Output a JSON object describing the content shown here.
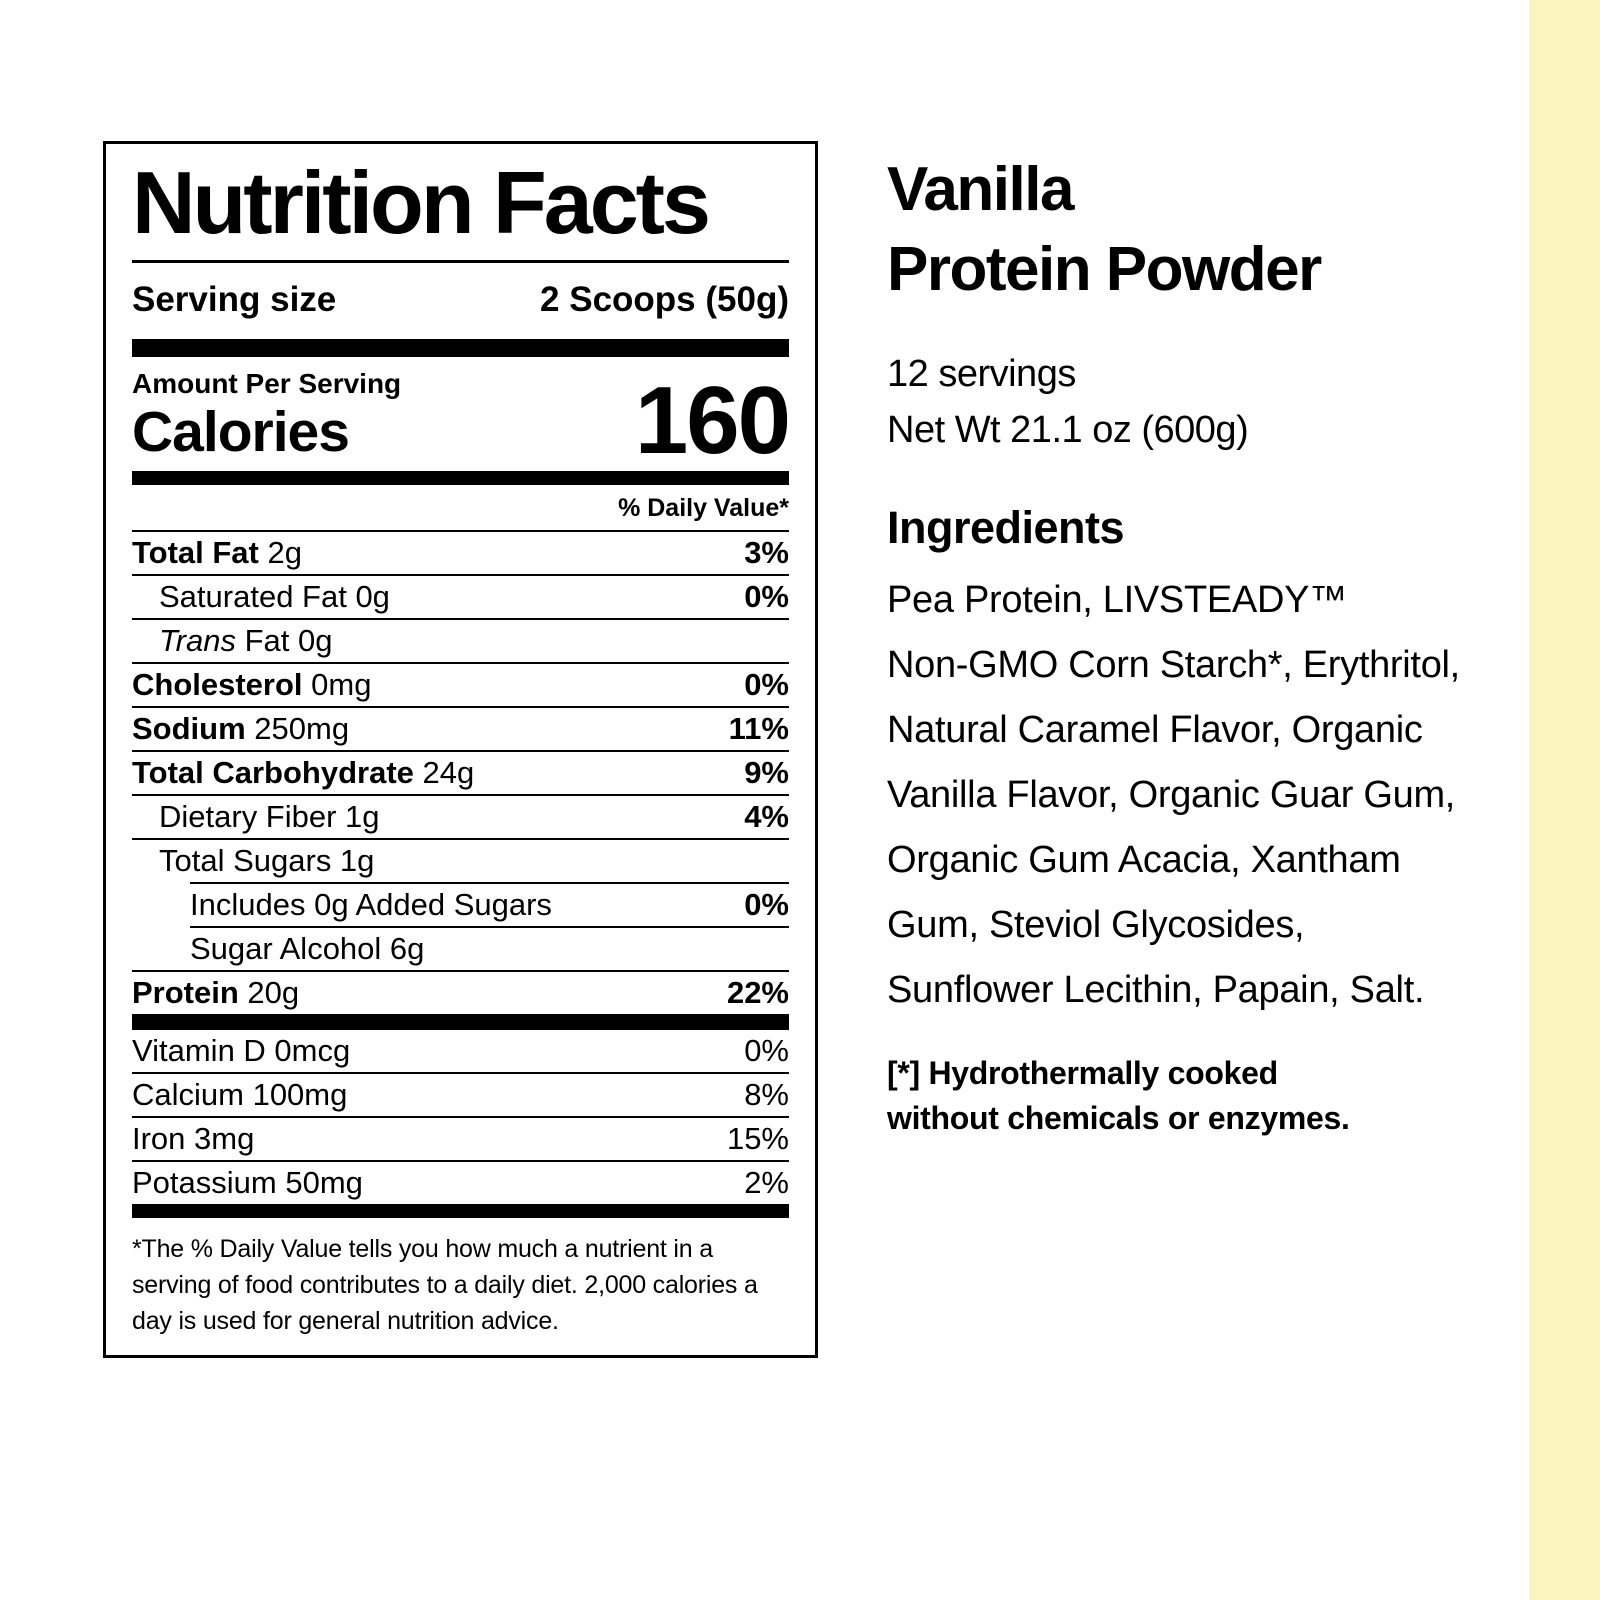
{
  "page": {
    "background": "#ffffff",
    "accent_stripe_color": "#faf5bf"
  },
  "nutrition_label": {
    "title": "Nutrition Facts",
    "serving_size_label": "Serving size",
    "serving_size_value": "2 Scoops (50g)",
    "amount_per_serving_label": "Amount Per Serving",
    "calories_label": "Calories",
    "calories_value": "160",
    "daily_value_header": "% Daily Value*",
    "main_rows": [
      {
        "segments": [
          {
            "t": "Total Fat",
            "b": true
          },
          {
            "t": " 2g"
          }
        ],
        "pct": "3%",
        "indent": 0
      },
      {
        "segments": [
          {
            "t": "Saturated Fat 0g"
          }
        ],
        "pct": "0%",
        "indent": 1
      },
      {
        "segments": [
          {
            "t": "Trans",
            "i": true
          },
          {
            "t": " Fat 0g"
          }
        ],
        "pct": "",
        "indent": 1
      },
      {
        "segments": [
          {
            "t": "Cholesterol",
            "b": true
          },
          {
            "t": " 0mg"
          }
        ],
        "pct": "0%",
        "indent": 0
      },
      {
        "segments": [
          {
            "t": "Sodium",
            "b": true
          },
          {
            "t": " 250mg"
          }
        ],
        "pct": "11%",
        "indent": 0
      },
      {
        "segments": [
          {
            "t": "Total Carbohydrate",
            "b": true
          },
          {
            "t": " 24g"
          }
        ],
        "pct": "9%",
        "indent": 0
      },
      {
        "segments": [
          {
            "t": "Dietary Fiber 1g"
          }
        ],
        "pct": "4%",
        "indent": 1
      },
      {
        "segments": [
          {
            "t": "Total Sugars 1g"
          }
        ],
        "pct": "",
        "indent": 1
      },
      {
        "segments": [
          {
            "t": "Includes 0g Added Sugars"
          }
        ],
        "pct": "0%",
        "indent": 0,
        "line_indent": true
      },
      {
        "segments": [
          {
            "t": "Sugar Alcohol 6g"
          }
        ],
        "pct": "",
        "indent": 0,
        "line_indent": true
      },
      {
        "segments": [
          {
            "t": "Protein",
            "b": true
          },
          {
            "t": " 20g"
          }
        ],
        "pct": "22%",
        "indent": 0
      }
    ],
    "vitamin_rows": [
      {
        "t": "Vitamin D 0mcg",
        "pct": "0%"
      },
      {
        "t": "Calcium 100mg",
        "pct": "8%"
      },
      {
        "t": "Iron 3mg",
        "pct": "15%"
      },
      {
        "t": "Potassium 50mg",
        "pct": "2%"
      }
    ],
    "footnote": "*The % Daily Value tells you how much a nutrient in a serving of food contributes to a daily diet. 2,000 calories a day is used for general nutrition advice."
  },
  "product_info": {
    "title_line1": "Vanilla",
    "title_line2": "Protein Powder",
    "servings": "12 servings",
    "net_weight": "Net Wt 21.1 oz (600g)",
    "ingredients_heading": "Ingredients",
    "ingredients_lines": [
      "Pea Protein, LIVSTEADY™",
      "Non-GMO Corn Starch*, Erythritol,",
      "Natural Caramel Flavor, Organic",
      "Vanilla Flavor, Organic Guar Gum,",
      "Organic Gum Acacia, Xantham",
      "Gum, Steviol Glycosides,",
      "Sunflower Lecithin, Papain, Salt."
    ],
    "footnote_line1": "[*] Hydrothermally cooked",
    "footnote_line2": "without chemicals or enzymes."
  }
}
